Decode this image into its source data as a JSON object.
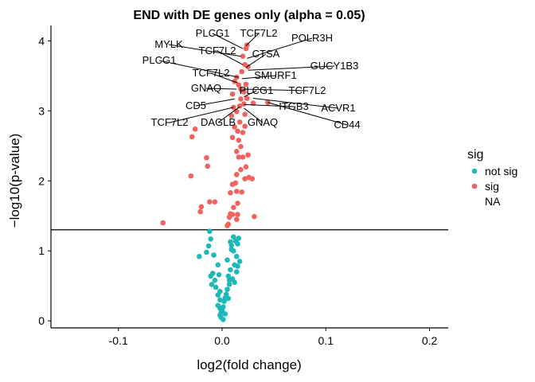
{
  "chart_data": {
    "type": "scatter",
    "title": "END with DE genes only (alpha = 0.05)",
    "xlabel": "log2(fold change)",
    "ylabel": "−log10(p-value)",
    "xlim": [
      -0.165,
      0.218
    ],
    "ylim": [
      -0.1,
      4.22
    ],
    "x_ticks": [
      -0.1,
      0.0,
      0.1,
      0.2
    ],
    "x_tick_labels": [
      "-0.1",
      "0.0",
      "0.1",
      "0.2"
    ],
    "y_ticks": [
      0,
      1,
      2,
      3,
      4
    ],
    "y_tick_labels": [
      "0",
      "1",
      "2",
      "3",
      "4"
    ],
    "threshold_y": 1.301,
    "grid": false,
    "legend": {
      "title": "sig",
      "position": "right",
      "entries": [
        {
          "label": "not sig",
          "color": "#1fb8b8"
        },
        {
          "label": "sig",
          "color": "#f0635e"
        },
        {
          "label": "NA",
          "color": null
        }
      ]
    },
    "series": [
      {
        "name": "not sig",
        "color": "#1fb8b8",
        "points": [
          [
            -0.012,
            1.28
          ],
          [
            -0.011,
            1.17
          ],
          [
            -0.013,
            1.07
          ],
          [
            -0.022,
            0.92
          ],
          [
            -0.015,
            0.98
          ],
          [
            -0.008,
            0.94
          ],
          [
            -0.004,
            0.8
          ],
          [
            -0.009,
            0.68
          ],
          [
            -0.011,
            0.64
          ],
          [
            -0.007,
            0.58
          ],
          [
            -0.01,
            0.52
          ],
          [
            -0.003,
            0.66
          ],
          [
            -0.006,
            0.48
          ],
          [
            -0.002,
            0.42
          ],
          [
            -0.004,
            0.37
          ],
          [
            -0.002,
            0.3
          ],
          [
            -0.004,
            0.22
          ],
          [
            -0.002,
            0.18
          ],
          [
            -0.001,
            0.12
          ],
          [
            -0.002,
            0.08
          ],
          [
            -0.001,
            0.05
          ],
          [
            0.0,
            0.15
          ],
          [
            0.001,
            0.2
          ],
          [
            0.002,
            0.28
          ],
          [
            0.003,
            0.33
          ],
          [
            0.004,
            0.38
          ],
          [
            0.006,
            0.32
          ],
          [
            0.005,
            0.45
          ],
          [
            0.007,
            0.52
          ],
          [
            0.007,
            0.58
          ],
          [
            0.006,
            0.64
          ],
          [
            0.008,
            0.73
          ],
          [
            0.005,
            0.87
          ],
          [
            0.012,
            0.8
          ],
          [
            0.015,
            0.78
          ],
          [
            0.017,
            0.85
          ],
          [
            0.014,
            0.92
          ],
          [
            0.011,
            1.0
          ],
          [
            0.009,
            1.08
          ],
          [
            0.008,
            1.13
          ],
          [
            0.013,
            1.14
          ],
          [
            0.016,
            1.18
          ],
          [
            0.011,
            1.2
          ],
          [
            0.015,
            1.1
          ],
          [
            0.009,
            1.02
          ],
          [
            0.014,
            0.7
          ],
          [
            0.01,
            0.6
          ],
          [
            0.012,
            0.55
          ],
          [
            0.003,
            0.1
          ],
          [
            0.001,
            0.02
          ]
        ]
      },
      {
        "name": "sig",
        "color": "#f0635e",
        "points": [
          [
            -0.057,
            1.4
          ],
          [
            -0.021,
            1.56
          ],
          [
            -0.02,
            1.63
          ],
          [
            -0.012,
            1.7
          ],
          [
            -0.007,
            1.7
          ],
          [
            -0.03,
            2.07
          ],
          [
            -0.014,
            2.21
          ],
          [
            -0.015,
            2.33
          ],
          [
            -0.029,
            2.63
          ],
          [
            -0.026,
            2.74
          ],
          [
            0.005,
            1.36
          ],
          [
            0.006,
            1.38
          ],
          [
            0.007,
            1.48
          ],
          [
            0.008,
            1.53
          ],
          [
            0.01,
            1.52
          ],
          [
            0.015,
            1.52
          ],
          [
            0.014,
            1.45
          ],
          [
            0.031,
            1.49
          ],
          [
            0.011,
            1.62
          ],
          [
            0.015,
            1.68
          ],
          [
            0.008,
            1.83
          ],
          [
            0.014,
            1.85
          ],
          [
            0.019,
            1.84
          ],
          [
            0.01,
            1.95
          ],
          [
            0.013,
            1.97
          ],
          [
            0.022,
            2.03
          ],
          [
            0.026,
            2.05
          ],
          [
            0.029,
            2.03
          ],
          [
            0.014,
            2.09
          ],
          [
            0.018,
            2.16
          ],
          [
            0.023,
            2.2
          ],
          [
            0.016,
            2.34
          ],
          [
            0.02,
            2.34
          ],
          [
            0.025,
            2.37
          ],
          [
            0.014,
            2.42
          ],
          [
            0.018,
            2.49
          ],
          [
            0.016,
            2.58
          ],
          [
            0.01,
            2.62
          ],
          [
            0.015,
            2.71
          ],
          [
            0.02,
            2.69
          ],
          [
            0.012,
            2.77
          ],
          [
            0.017,
            2.84
          ],
          [
            0.022,
            2.78
          ],
          [
            0.009,
            2.93
          ],
          [
            0.014,
            2.99
          ],
          [
            0.022,
            2.95
          ],
          [
            0.011,
            3.05
          ],
          [
            0.017,
            3.07
          ],
          [
            0.021,
            3.1
          ],
          [
            0.018,
            3.17
          ],
          [
            0.024,
            3.18
          ],
          [
            0.03,
            3.11
          ],
          [
            0.044,
            3.12
          ],
          [
            0.01,
            3.24
          ],
          [
            0.018,
            3.31
          ],
          [
            0.023,
            3.38
          ],
          [
            0.014,
            3.48
          ],
          [
            0.019,
            3.56
          ],
          [
            0.025,
            3.63
          ],
          [
            0.022,
            3.66
          ],
          [
            0.02,
            3.78
          ],
          [
            0.023,
            3.89
          ],
          [
            0.024,
            3.94
          ],
          [
            0.016,
            3.37
          ],
          [
            0.012,
            3.42
          ],
          [
            0.021,
            3.27
          ]
        ]
      }
    ],
    "annotations": [
      {
        "text": "PLCG1",
        "x": 0.02,
        "y": 3.89
      },
      {
        "text": "TCF7L2",
        "x": 0.023,
        "y": 3.93
      },
      {
        "text": "POLR3H",
        "x": 0.024,
        "y": 3.75
      },
      {
        "text": "MYLK",
        "x": 0.018,
        "y": 3.78
      },
      {
        "text": "TCF7L2",
        "x": 0.02,
        "y": 3.66
      },
      {
        "text": "CTSA",
        "x": 0.023,
        "y": 3.62
      },
      {
        "text": "GUCY1B3",
        "x": 0.025,
        "y": 3.58
      },
      {
        "text": "PLCG1",
        "x": 0.016,
        "y": 3.48
      },
      {
        "text": "SMURF1",
        "x": 0.019,
        "y": 3.46
      },
      {
        "text": "TCF7L2",
        "x": 0.015,
        "y": 3.4
      },
      {
        "text": "GNAQ",
        "x": 0.014,
        "y": 3.31
      },
      {
        "text": "TCF7L2",
        "x": 0.02,
        "y": 3.31
      },
      {
        "text": "PLCG1",
        "x": 0.021,
        "y": 3.2
      },
      {
        "text": "ACVR1",
        "x": 0.03,
        "y": 3.18
      },
      {
        "text": "CD5",
        "x": 0.012,
        "y": 3.17
      },
      {
        "text": "ITGB3",
        "x": 0.021,
        "y": 3.09
      },
      {
        "text": "CD44",
        "x": 0.044,
        "y": 3.12
      },
      {
        "text": "TCF7L2",
        "x": 0.011,
        "y": 3.05
      },
      {
        "text": "DAGLB",
        "x": 0.017,
        "y": 3.06
      },
      {
        "text": "GNAQ",
        "x": 0.021,
        "y": 3.04
      }
    ]
  }
}
